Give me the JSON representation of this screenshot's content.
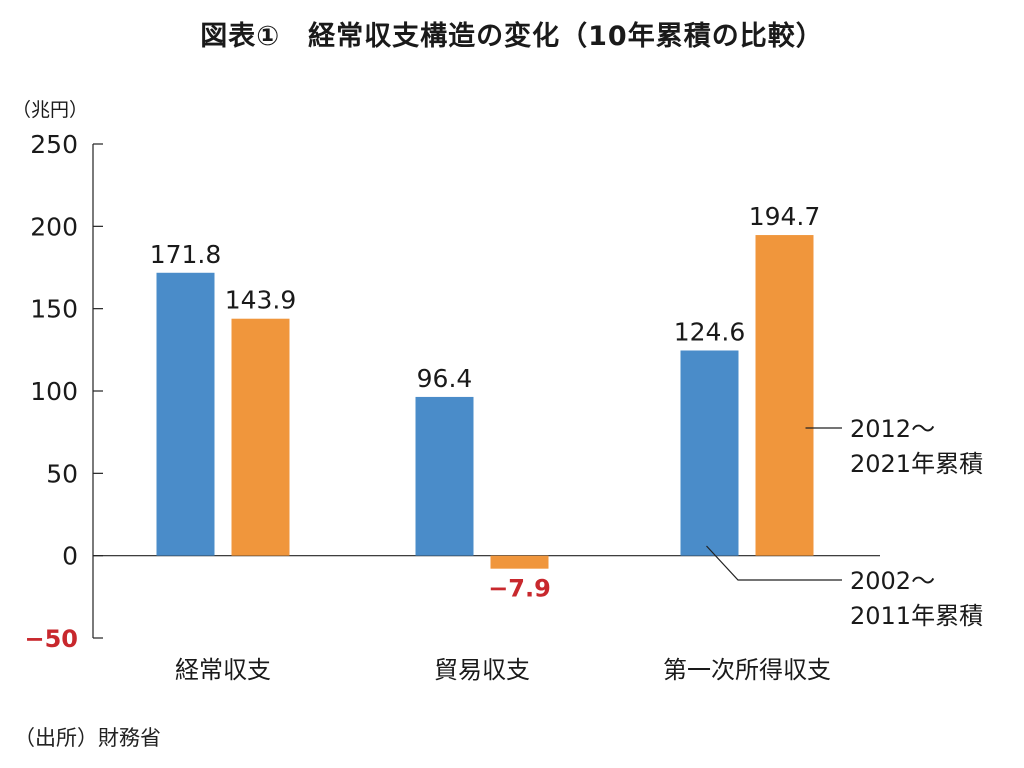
{
  "chart_data": {
    "type": "bar",
    "title": "図表①　経常収支構造の変化（10年累積の比較）",
    "y_unit": "（兆円）",
    "ylim": [
      -50,
      250
    ],
    "y_ticks": [
      "250",
      "200",
      "150",
      "100",
      "50",
      "0",
      "−50"
    ],
    "y_tick_values": [
      250,
      200,
      150,
      100,
      50,
      0,
      -50
    ],
    "categories": [
      "経常収支",
      "貿易収支",
      "第一次所得収支"
    ],
    "series": [
      {
        "name": "2002～2011年累積",
        "legend_lines": [
          "2002～",
          "2011年累積"
        ],
        "color": "#4a8cc9",
        "values": [
          171.8,
          96.4,
          124.6
        ],
        "labels": [
          "171.8",
          "96.4",
          "124.6"
        ]
      },
      {
        "name": "2012～2021年累積",
        "legend_lines": [
          "2012～",
          "2021年累積"
        ],
        "color": "#f0963c",
        "values": [
          143.9,
          -7.9,
          194.7
        ],
        "labels": [
          "143.9",
          "−7.9",
          "194.7"
        ]
      }
    ],
    "negative_color": "#c8282d",
    "grid": false
  },
  "source": "（出所）財務省"
}
